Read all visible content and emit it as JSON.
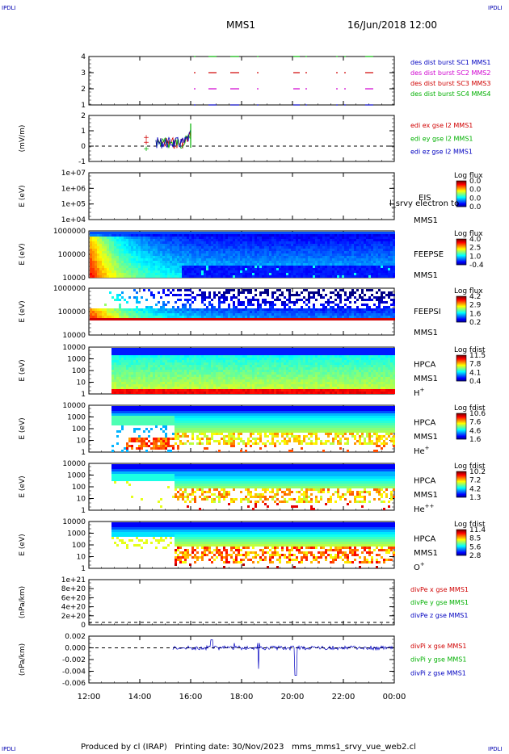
{
  "header": {
    "title": "MMS1",
    "date": "16/Jun/2018 12:00",
    "corner_label": "IPDLI"
  },
  "footer": {
    "text": "Produced by cl (IRAP)   Printing date: 30/Nov/2023   mms_mms1_srvy_vue_web2.cl"
  },
  "time_axis": {
    "tick_labels": [
      "12:00",
      "14:00",
      "16:00",
      "18:00",
      "20:00",
      "22:00",
      "00:00"
    ]
  },
  "chart_data": [
    {
      "type": "line",
      "id": "availability",
      "ylabel": "",
      "yticks": [
        "1",
        "2",
        "3",
        "4"
      ],
      "legend": [
        {
          "text": "des dist burst SC1 MMS1",
          "color": "#0000c0"
        },
        {
          "text": "des dist burst SC2 MMS2",
          "color": "#d000d0"
        },
        {
          "text": "des dist burst SC3 MMS3",
          "color": "#d00000"
        },
        {
          "text": "des dist burst SC4 MMS4",
          "color": "#00b000"
        }
      ],
      "series": [
        {
          "level": 1,
          "color": "#0000c0"
        },
        {
          "level": 2,
          "color": "#d000d0"
        },
        {
          "level": 3,
          "color": "#d00000"
        },
        {
          "level": 4,
          "color": "#00b000"
        }
      ]
    },
    {
      "type": "line",
      "id": "edi",
      "ylabel": "(mV/m)",
      "yticks": [
        "-1",
        "0",
        "1",
        "2"
      ],
      "legend": [
        {
          "text": "edi ex gse l2 MMS1",
          "color": "#d00000"
        },
        {
          "text": "edi ey gse l2 MMS1",
          "color": "#00b000"
        },
        {
          "text": "edi ez gse l2 MMS1",
          "color": "#0000c0"
        }
      ]
    },
    {
      "type": "heatmap",
      "id": "eis",
      "ylabel": "E (eV)",
      "yticks": [
        "1e+04",
        "1e+05",
        "1e+06",
        "1e+07"
      ],
      "labels": [
        "EIS",
        "MMS1"
      ],
      "overlay_text": "l_srvy electron to",
      "cbar_title": "Log flux",
      "cbar_ticks": [
        "0.0",
        "0.0",
        "0.0",
        "0.0"
      ]
    },
    {
      "type": "heatmap",
      "id": "feepse",
      "ylabel": "E (eV)",
      "yticks": [
        "10000",
        "100000",
        "1000000"
      ],
      "labels": [
        "FEEPSE",
        "MMS1"
      ],
      "cbar_title": "Log flux",
      "cbar_ticks": [
        "4.0",
        "2.5",
        "1.0",
        "-0.4"
      ]
    },
    {
      "type": "heatmap",
      "id": "feepsi",
      "ylabel": "E (eV)",
      "yticks": [
        "10000",
        "100000",
        "1000000"
      ],
      "labels": [
        "FEEPSI",
        "MMS1"
      ],
      "cbar_title": "Log flux",
      "cbar_ticks": [
        "4.2",
        "2.9",
        "1.6",
        "0.2"
      ]
    },
    {
      "type": "heatmap",
      "id": "hpca_h",
      "ylabel": "E (eV)",
      "yticks": [
        "1",
        "10",
        "100",
        "1000",
        "10000"
      ],
      "labels": [
        "HPCA",
        "MMS1",
        "H+"
      ],
      "cbar_title": "Log fdist",
      "cbar_ticks": [
        "11.5",
        "7.8",
        "4.1",
        "0.4"
      ]
    },
    {
      "type": "heatmap",
      "id": "hpca_he",
      "ylabel": "E (eV)",
      "yticks": [
        "1",
        "10",
        "100",
        "1000",
        "10000"
      ],
      "labels": [
        "HPCA",
        "MMS1",
        "He+"
      ],
      "cbar_title": "Log fdist",
      "cbar_ticks": [
        "10.6",
        "7.6",
        "4.6",
        "1.6"
      ]
    },
    {
      "type": "heatmap",
      "id": "hpca_hepp",
      "ylabel": "E (eV)",
      "yticks": [
        "1",
        "10",
        "100",
        "1000",
        "10000"
      ],
      "labels": [
        "HPCA",
        "MMS1",
        "He++"
      ],
      "cbar_title": "Log fdist",
      "cbar_ticks": [
        "10.2",
        "7.2",
        "4.2",
        "1.3"
      ]
    },
    {
      "type": "heatmap",
      "id": "hpca_o",
      "ylabel": "E (eV)",
      "yticks": [
        "1",
        "10",
        "100",
        "1000",
        "10000"
      ],
      "labels": [
        "HPCA",
        "MMS1",
        "O+"
      ],
      "cbar_title": "Log fdist",
      "cbar_ticks": [
        "11.4",
        "8.5",
        "5.6",
        "2.8"
      ]
    },
    {
      "type": "line",
      "id": "divpe",
      "ylabel": "(nPa/km)",
      "yticks": [
        "0",
        "2e+20",
        "4e+20",
        "6e+20",
        "8e+20",
        "1e+21"
      ],
      "legend": [
        {
          "text": "divPe x gse MMS1",
          "color": "#d00000"
        },
        {
          "text": "divPe y gse MMS1",
          "color": "#00b000"
        },
        {
          "text": "divPe z gse MMS1",
          "color": "#0000c0"
        }
      ]
    },
    {
      "type": "line",
      "id": "divpi",
      "ylabel": "(nPa/km)",
      "yticks": [
        "-0.006",
        "-0.004",
        "-0.002",
        "0.000",
        "0.002"
      ],
      "legend": [
        {
          "text": "divPi x gse MMS1",
          "color": "#d00000"
        },
        {
          "text": "divPi y gse MMS1",
          "color": "#00b000"
        },
        {
          "text": "divPi z gse MMS1",
          "color": "#0000c0"
        }
      ]
    }
  ]
}
